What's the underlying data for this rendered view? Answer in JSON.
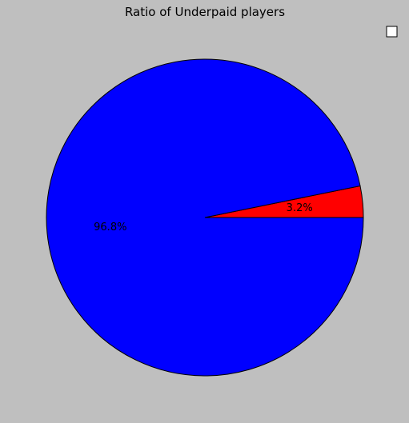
{
  "chart_data": {
    "type": "pie",
    "title": "Ratio of Underpaid players",
    "slices": [
      {
        "value": 3.2,
        "label": "3.2%",
        "color": "#ff0000"
      },
      {
        "value": 96.8,
        "label": "96.8%",
        "color": "#0000ff"
      }
    ],
    "start_angle_deg": 0,
    "direction": "counterclockwise",
    "legend": {
      "placement": "top-right",
      "entries": [
        ""
      ]
    }
  }
}
